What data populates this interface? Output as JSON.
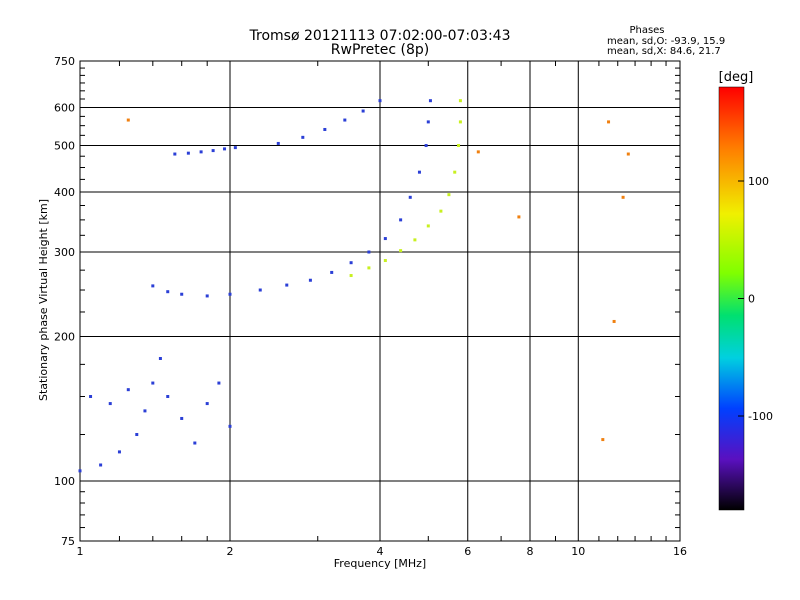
{
  "colors": {
    "background": "#ffffff",
    "axes": "#000000",
    "trace_main": "#2b3fd6",
    "trace_dark": "#3a2a9a",
    "trace_yellow": "#c8f020",
    "trace_orange": "#f08010"
  },
  "chart_data": {
    "type": "scatter",
    "title": "Tromsø 20121113 07:02:00-07:03:43",
    "subtitle": "RwPretec (8p)",
    "xlabel": "Frequency [MHz]",
    "ylabel": "Stationary phase Virtual Height [km]",
    "xscale": "log",
    "yscale": "log",
    "xlim": [
      1,
      16
    ],
    "ylim": [
      75,
      750
    ],
    "grid": true,
    "xticks": [
      1,
      2,
      4,
      6,
      8,
      10,
      16
    ],
    "xtick_labels": [
      "1",
      "2",
      "4",
      "6",
      "8",
      "10",
      "16"
    ],
    "yticks": [
      75,
      100,
      200,
      300,
      400,
      500,
      600,
      750
    ],
    "ytick_labels": [
      "75",
      "100",
      "200",
      "300",
      "400",
      "500",
      "600",
      "750"
    ],
    "stats": {
      "heading": "Phases",
      "line_o": "mean, sd,O: -93.9, 15.9",
      "line_x": "mean, sd,X:  84.6, 21.7"
    },
    "colorbar": {
      "label": "[deg]",
      "range": [
        -180,
        180
      ],
      "ticks": [
        100,
        0,
        -100
      ],
      "tick_labels": [
        "100",
        "0",
        "-100"
      ]
    },
    "series": [
      {
        "name": "",
        "color": "#2b3fd6",
        "points": [
          [
            1.55,
            480
          ],
          [
            1.65,
            482
          ],
          [
            1.75,
            485
          ],
          [
            1.85,
            488
          ],
          [
            1.95,
            492
          ],
          [
            2.05,
            495
          ],
          [
            2.5,
            505
          ],
          [
            2.8,
            520
          ],
          [
            3.1,
            540
          ],
          [
            3.4,
            565
          ],
          [
            3.7,
            590
          ],
          [
            4.0,
            620
          ]
        ]
      },
      {
        "name": "",
        "color": "#2b3fd6",
        "points": [
          [
            1.4,
            255
          ],
          [
            1.5,
            248
          ],
          [
            1.6,
            245
          ],
          [
            1.8,
            243
          ],
          [
            2.0,
            245
          ],
          [
            2.3,
            250
          ],
          [
            2.6,
            256
          ],
          [
            2.9,
            262
          ],
          [
            3.2,
            272
          ],
          [
            3.5,
            285
          ],
          [
            3.8,
            300
          ],
          [
            4.1,
            320
          ],
          [
            4.4,
            350
          ],
          [
            4.6,
            390
          ],
          [
            4.8,
            440
          ],
          [
            4.95,
            500
          ],
          [
            5.0,
            560
          ],
          [
            5.05,
            620
          ]
        ]
      },
      {
        "name": "",
        "color": "#c8f020",
        "points": [
          [
            3.5,
            268
          ],
          [
            3.8,
            278
          ],
          [
            4.1,
            288
          ],
          [
            4.4,
            302
          ],
          [
            4.7,
            318
          ],
          [
            5.0,
            340
          ],
          [
            5.3,
            365
          ],
          [
            5.5,
            395
          ],
          [
            5.65,
            440
          ],
          [
            5.75,
            500
          ],
          [
            5.8,
            560
          ],
          [
            5.8,
            620
          ]
        ]
      },
      {
        "name": "",
        "color": "#2b3fd6",
        "points": [
          [
            1.0,
            105
          ],
          [
            1.1,
            108
          ],
          [
            1.2,
            115
          ],
          [
            1.3,
            125
          ],
          [
            1.35,
            140
          ],
          [
            1.4,
            160
          ],
          [
            1.45,
            180
          ],
          [
            1.5,
            150
          ],
          [
            1.6,
            135
          ],
          [
            1.7,
            120
          ],
          [
            1.8,
            145
          ],
          [
            1.9,
            160
          ],
          [
            2.0,
            130
          ],
          [
            1.05,
            150
          ],
          [
            1.15,
            145
          ],
          [
            1.25,
            155
          ]
        ]
      },
      {
        "name": "",
        "color": "#f08010",
        "points": [
          [
            1.25,
            565
          ],
          [
            6.3,
            485
          ],
          [
            7.6,
            355
          ],
          [
            11.5,
            560
          ],
          [
            12.3,
            390
          ],
          [
            12.6,
            480
          ],
          [
            11.8,
            215
          ],
          [
            11.2,
            122
          ]
        ]
      }
    ]
  }
}
